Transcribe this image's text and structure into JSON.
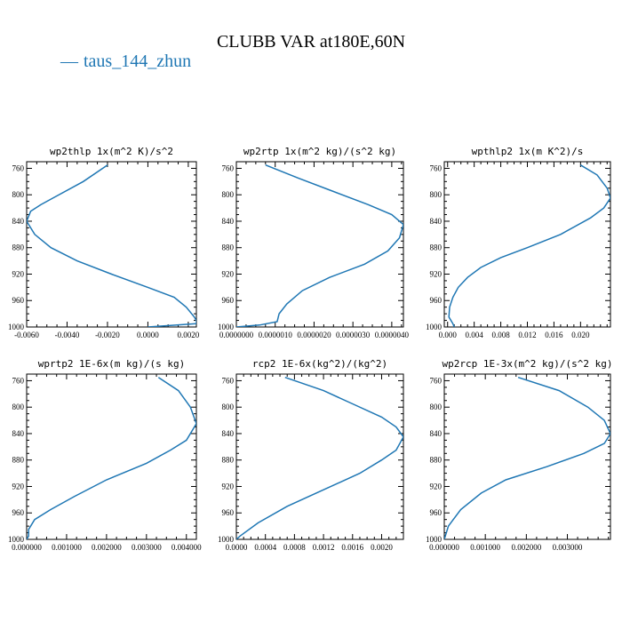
{
  "title": "CLUBB VAR at180E,60N",
  "legend": {
    "label": "taus_144_zhun",
    "color": "#1f77b4"
  },
  "chart_data": [
    {
      "type": "line",
      "title": "wp2thlp  1x(m^2 K)/s^2",
      "xlim": [
        -0.006,
        0.0024
      ],
      "ylim": [
        1000,
        750
      ],
      "xticks": [
        "-0.0060",
        "-0.0040",
        "-0.0020",
        "0.0000",
        "0.0020"
      ],
      "xtick_values": [
        -0.006,
        -0.004,
        -0.002,
        0.0,
        0.002
      ],
      "yticks": [
        "760",
        "800",
        "840",
        "880",
        "920",
        "960",
        "1000"
      ],
      "ytick_values": [
        760,
        800,
        840,
        880,
        920,
        960,
        1000
      ],
      "x": [
        -0.002,
        -0.0032,
        -0.0047,
        -0.0053,
        -0.0058,
        -0.006,
        -0.0056,
        -0.0048,
        -0.0035,
        -0.0018,
        0.0,
        0.0013,
        0.0019,
        0.0023,
        0.0024,
        0.0024,
        0.0
      ],
      "y": [
        755,
        780,
        805,
        815,
        825,
        840,
        860,
        880,
        900,
        920,
        940,
        955,
        970,
        985,
        990,
        995,
        1000
      ]
    },
    {
      "type": "line",
      "title": "wp2rtp  1x(m^2 kg)/(s^2 kg)",
      "xlim": [
        0.0,
        4.3e-06
      ],
      "ylim": [
        1000,
        750
      ],
      "xticks": [
        "0.0000000",
        "0.0000010",
        "0.0000020",
        "0.0000030",
        "0.0000040"
      ],
      "xtick_values": [
        0.0,
        1e-06,
        2e-06,
        3e-06,
        4e-06
      ],
      "yticks": [
        "760",
        "800",
        "840",
        "880",
        "920",
        "960",
        "1000"
      ],
      "ytick_values": [
        760,
        800,
        840,
        880,
        920,
        960,
        1000
      ],
      "x": [
        7.5e-07,
        1.6e-06,
        2.5e-06,
        3.4e-06,
        4e-06,
        4.3e-06,
        4.2e-06,
        3.9e-06,
        3.3e-06,
        2.4e-06,
        1.7e-06,
        1.3e-06,
        1.1e-06,
        1.05e-06,
        6e-07,
        0.0
      ],
      "y": [
        755,
        775,
        795,
        815,
        830,
        845,
        865,
        885,
        905,
        925,
        945,
        965,
        980,
        992,
        997,
        1000
      ]
    },
    {
      "type": "line",
      "title": "wpthlp2  1x(m K^2)/s",
      "xlim": [
        -0.0005,
        0.0245
      ],
      "ylim": [
        1000,
        750
      ],
      "xticks": [
        "0.000",
        "0.004",
        "0.008",
        "0.012",
        "0.016",
        "0.020"
      ],
      "xtick_values": [
        0.0,
        0.004,
        0.008,
        0.012,
        0.016,
        0.02
      ],
      "yticks": [
        "760",
        "800",
        "840",
        "880",
        "920",
        "960",
        "1000"
      ],
      "ytick_values": [
        760,
        800,
        840,
        880,
        920,
        960,
        1000
      ],
      "x": [
        0.02,
        0.0225,
        0.024,
        0.0245,
        0.0235,
        0.0215,
        0.017,
        0.012,
        0.008,
        0.005,
        0.003,
        0.0016,
        0.0008,
        0.0003,
        0.0002,
        0.0008,
        0.001
      ],
      "y": [
        755,
        770,
        790,
        805,
        820,
        835,
        860,
        880,
        895,
        910,
        925,
        940,
        955,
        970,
        985,
        995,
        1000
      ]
    },
    {
      "type": "line",
      "title": "wprtp2  1E-6x(m kg)/(s kg)",
      "xlim": [
        0.0,
        0.00425
      ],
      "ylim": [
        1000,
        750
      ],
      "xticks": [
        "0.000000",
        "0.001000",
        "0.002000",
        "0.003000",
        "0.004000"
      ],
      "xtick_values": [
        0.0,
        0.001,
        0.002,
        0.003,
        0.004
      ],
      "yticks": [
        "760",
        "800",
        "840",
        "880",
        "920",
        "960",
        "1000"
      ],
      "ytick_values": [
        760,
        800,
        840,
        880,
        920,
        960,
        1000
      ],
      "x": [
        0.0033,
        0.0038,
        0.0041,
        0.00425,
        0.004,
        0.0036,
        0.003,
        0.002,
        0.0012,
        0.0006,
        0.0002,
        5e-05,
        5e-05,
        0.0
      ],
      "y": [
        755,
        775,
        800,
        825,
        850,
        865,
        885,
        910,
        935,
        955,
        970,
        985,
        995,
        1000
      ]
    },
    {
      "type": "line",
      "title": "rcp2  1E-6x(kg^2)/(kg^2)",
      "xlim": [
        0.0,
        0.0023
      ],
      "ylim": [
        1000,
        750
      ],
      "xticks": [
        "0.0000",
        "0.0004",
        "0.0008",
        "0.0012",
        "0.0016",
        "0.0020"
      ],
      "xtick_values": [
        0.0,
        0.0004,
        0.0008,
        0.0012,
        0.0016,
        0.002
      ],
      "yticks": [
        "760",
        "800",
        "840",
        "880",
        "920",
        "960",
        "1000"
      ],
      "ytick_values": [
        760,
        800,
        840,
        880,
        920,
        960,
        1000
      ],
      "x": [
        0.00067,
        0.0012,
        0.0016,
        0.002,
        0.0022,
        0.0023,
        0.0022,
        0.002,
        0.0017,
        0.0012,
        0.0007,
        0.0003,
        5e-05,
        0.0
      ],
      "y": [
        755,
        775,
        795,
        815,
        830,
        845,
        865,
        880,
        900,
        925,
        950,
        975,
        995,
        1000
      ]
    },
    {
      "type": "line",
      "title": "wp2rcp  1E-3x(m^2 kg)/(s^2 kg)",
      "xlim": [
        0.0,
        0.00405
      ],
      "ylim": [
        1000,
        750
      ],
      "xticks": [
        "0.000000",
        "0.001000",
        "0.002000",
        "0.003000"
      ],
      "xtick_values": [
        0.0,
        0.001,
        0.002,
        0.003
      ],
      "yticks": [
        "760",
        "800",
        "840",
        "880",
        "920",
        "960",
        "1000"
      ],
      "ytick_values": [
        760,
        800,
        840,
        880,
        920,
        960,
        1000
      ],
      "x": [
        0.0018,
        0.0028,
        0.0035,
        0.0039,
        0.00405,
        0.0039,
        0.0034,
        0.0025,
        0.0015,
        0.0009,
        0.0004,
        0.0001,
        0.0
      ],
      "y": [
        755,
        775,
        800,
        820,
        840,
        855,
        870,
        890,
        910,
        930,
        955,
        980,
        1000
      ]
    }
  ]
}
